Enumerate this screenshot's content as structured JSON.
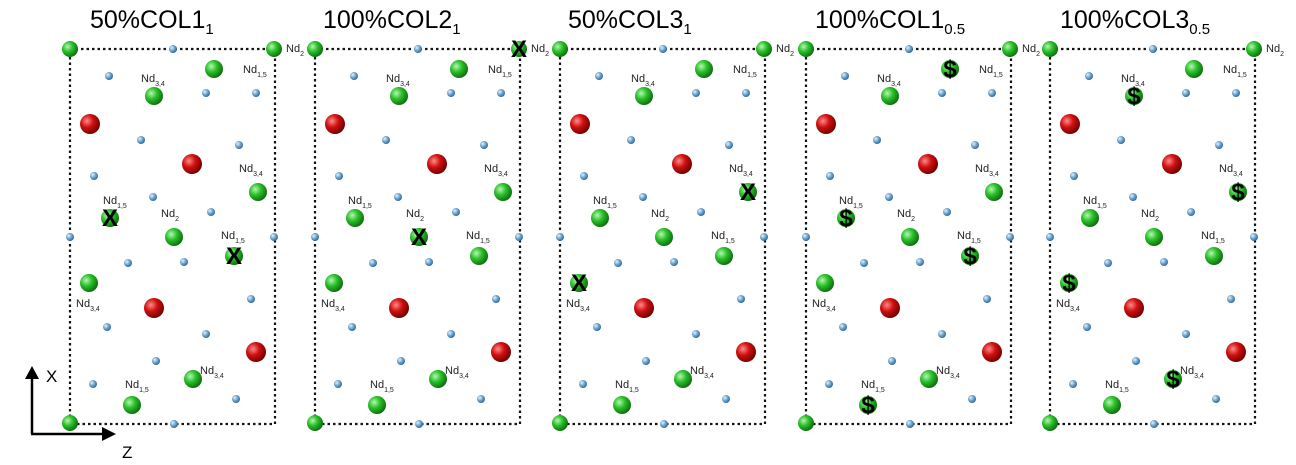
{
  "panels": [
    {
      "id": "p1",
      "title_main": "50%COL1",
      "title_sub": "1",
      "marker_symbol": "X",
      "marked_sites": [
        "nd15-left",
        "nd15-right"
      ]
    },
    {
      "id": "p2",
      "title_main": "100%COL2",
      "title_sub": "1",
      "marker_symbol": "X",
      "marked_sites": [
        "nd2-top-right",
        "nd2-center"
      ]
    },
    {
      "id": "p3",
      "title_main": "50%COL3",
      "title_sub": "1",
      "marker_symbol": "X",
      "marked_sites": [
        "nd34-right",
        "nd34-left"
      ]
    },
    {
      "id": "p4",
      "title_main": "100%COL1",
      "title_sub": "0.5",
      "marker_symbol": "$",
      "marked_sites": [
        "nd15-top",
        "nd15-left",
        "nd15-right",
        "nd15-bottom"
      ]
    },
    {
      "id": "p5",
      "title_main": "100%COL3",
      "title_sub": "0.5",
      "marker_symbol": "$",
      "marked_sites": [
        "nd34-top",
        "nd34-right",
        "nd34-left",
        "nd34-bottom"
      ]
    }
  ],
  "site_labels": {
    "nd2": {
      "main": "Nd",
      "sub": "2"
    },
    "nd34": {
      "main": "Nd",
      "sub": "3,4"
    },
    "nd15": {
      "main": "Nd",
      "sub": "1,5"
    }
  },
  "axes": {
    "x_label": "X",
    "z_label": "Z"
  },
  "colors": {
    "nd_atom": "#2bc12b",
    "red_atom": "#d01010",
    "small_atom": "#5d97c4",
    "cell_edge": "#111111"
  }
}
